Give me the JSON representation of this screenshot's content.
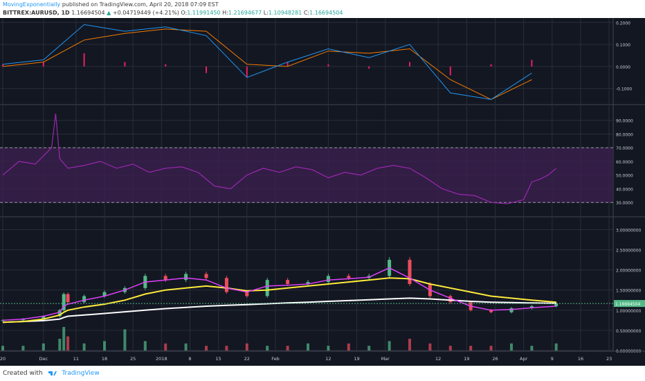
{
  "header": {
    "author": "MovingExponentially",
    "published": "published on TradingView.com, April 20, 2018 07:09 EST",
    "symbol": "BITTREX:AURUSD, 1D",
    "price": "1.16694504",
    "change": "+0.04719449 (+4.21%)",
    "o_label": "O:",
    "o_value": "1.11991450",
    "h_label": "H:",
    "h_value": "1.21694677",
    "l_label": "L:",
    "l_value": "1.10948281",
    "c_label": "C:",
    "c_value": "1.16694504"
  },
  "footer": {
    "created": "Created with",
    "brand": "TradingView"
  },
  "colors": {
    "background": "#131722",
    "grid": "#2a2e39",
    "text": "#c8cbd4",
    "up": "#53b987",
    "down": "#eb4d5c",
    "macd": "#2196f3",
    "signal": "#f57c00",
    "histogram": "#e91e63",
    "rsi": "#9c27b0",
    "rsi_band": "#3b1f4f",
    "ema_yellow": "#ffeb3b",
    "ema_white": "#ffffff",
    "ema_pink": "#e040fb",
    "ema_blue": "#2962ff",
    "price_tag": "#53b987"
  },
  "chart_data": [
    {
      "type": "line",
      "name": "MACD",
      "series_names": [
        "macd",
        "signal",
        "histogram"
      ],
      "x": [
        0,
        10,
        20,
        30,
        40,
        50,
        60,
        70,
        80,
        90,
        100,
        110,
        120,
        130
      ],
      "macd": [
        0.01,
        0.03,
        0.19,
        0.16,
        0.18,
        0.14,
        -0.05,
        0.02,
        0.08,
        0.04,
        0.1,
        -0.12,
        -0.15,
        -0.03
      ],
      "signal": [
        0.0,
        0.02,
        0.12,
        0.15,
        0.17,
        0.16,
        0.01,
        0.0,
        0.07,
        0.06,
        0.08,
        -0.06,
        -0.15,
        -0.06
      ],
      "histogram": [
        0.01,
        0.02,
        0.06,
        0.02,
        0.01,
        -0.03,
        -0.05,
        0.02,
        0.01,
        -0.01,
        0.02,
        -0.04,
        0.01,
        0.03
      ],
      "ylim": [
        -0.17,
        0.22
      ],
      "y_ticks": [
        "0.2000",
        "0.1000",
        "0.0000",
        "-0.1000"
      ],
      "y_tick_values": [
        0.2,
        0.1,
        0.0,
        -0.1
      ]
    },
    {
      "type": "line",
      "name": "RSI",
      "x": [
        0,
        4,
        8,
        12,
        13,
        14,
        16,
        20,
        24,
        28,
        32,
        36,
        40,
        44,
        48,
        52,
        56,
        60,
        64,
        68,
        72,
        76,
        80,
        84,
        88,
        92,
        96,
        100,
        104,
        108,
        112,
        116,
        120,
        124,
        128,
        130,
        132,
        134,
        136
      ],
      "values": [
        50,
        60,
        58,
        70,
        95,
        62,
        55,
        57,
        60,
        55,
        58,
        52,
        55,
        56,
        52,
        42,
        40,
        50,
        55,
        52,
        56,
        54,
        48,
        52,
        50,
        55,
        57,
        55,
        48,
        40,
        36,
        35,
        30,
        29,
        32,
        45,
        47,
        50,
        55
      ],
      "ylim": [
        20,
        101
      ],
      "band": [
        30,
        70
      ],
      "y_ticks": [
        "90.0000",
        "80.0000",
        "70.0000",
        "60.0000",
        "50.0000",
        "40.0000",
        "30.0000"
      ],
      "y_tick_values": [
        90,
        80,
        70,
        60,
        50,
        40,
        30
      ]
    },
    {
      "type": "candlestick",
      "name": "AURUSD",
      "x": [
        0,
        5,
        10,
        14,
        15,
        16,
        20,
        25,
        30,
        35,
        40,
        45,
        50,
        55,
        60,
        65,
        70,
        75,
        80,
        85,
        90,
        95,
        100,
        105,
        110,
        115,
        120,
        125,
        130,
        136
      ],
      "close": [
        0.75,
        0.78,
        0.85,
        1.0,
        1.4,
        1.2,
        1.35,
        1.45,
        1.55,
        1.85,
        1.75,
        1.9,
        1.8,
        1.45,
        1.35,
        1.75,
        1.65,
        1.7,
        1.85,
        1.8,
        1.85,
        2.25,
        1.65,
        1.35,
        1.2,
        1.0,
        0.95,
        1.05,
        1.1,
        1.17
      ],
      "volume": [
        0.2,
        0.2,
        0.3,
        0.5,
        1.0,
        0.6,
        0.3,
        0.4,
        0.9,
        0.4,
        0.3,
        0.3,
        0.2,
        0.2,
        0.3,
        0.2,
        0.2,
        0.3,
        0.2,
        0.3,
        0.2,
        0.4,
        0.5,
        0.3,
        0.2,
        0.2,
        0.2,
        0.3,
        0.2,
        0.3
      ],
      "ema_yellow": [
        0.7,
        0.72,
        0.78,
        0.88,
        0.95,
        1.0,
        1.08,
        1.15,
        1.25,
        1.4,
        1.5,
        1.55,
        1.6,
        1.55,
        1.48,
        1.5,
        1.55,
        1.6,
        1.65,
        1.7,
        1.75,
        1.8,
        1.78,
        1.65,
        1.55,
        1.45,
        1.35,
        1.3,
        1.25,
        1.2
      ],
      "ema_white": [
        0.7,
        0.72,
        0.74,
        0.78,
        0.82,
        0.85,
        0.88,
        0.92,
        0.96,
        1.0,
        1.04,
        1.07,
        1.1,
        1.12,
        1.14,
        1.16,
        1.18,
        1.2,
        1.22,
        1.24,
        1.26,
        1.28,
        1.3,
        1.28,
        1.25,
        1.22,
        1.2,
        1.19,
        1.18,
        1.17
      ],
      "ema_pink": [
        0.75,
        0.78,
        0.85,
        0.95,
        1.1,
        1.15,
        1.25,
        1.35,
        1.5,
        1.7,
        1.75,
        1.8,
        1.75,
        1.55,
        1.45,
        1.6,
        1.62,
        1.65,
        1.75,
        1.78,
        1.82,
        2.05,
        1.8,
        1.5,
        1.3,
        1.1,
        1.0,
        1.02,
        1.06,
        1.1
      ],
      "last_price": "1.16694504",
      "last_price_value": 1.16694504,
      "ylim": [
        0.0,
        3.3
      ],
      "y_ticks": [
        "3.00000000",
        "2.50000000",
        "2.00000000",
        "1.50000000",
        "1.00000000",
        "0.50000000",
        "0.00000000"
      ],
      "y_tick_values": [
        3.0,
        2.5,
        2.0,
        1.5,
        1.0,
        0.5,
        0.0
      ],
      "x_ticks": [
        "20",
        "Dec",
        "11",
        "18",
        "25",
        "2018",
        "8",
        "15",
        "22",
        "Feb",
        "12",
        "19",
        "Mar",
        "12",
        "19",
        "26",
        "Apr",
        "9",
        "16",
        "23"
      ],
      "x_tick_values": [
        0,
        10,
        18,
        25,
        32,
        39,
        46,
        53,
        60,
        67,
        80,
        87,
        94,
        107,
        114,
        121,
        128,
        135,
        142,
        149
      ]
    }
  ]
}
